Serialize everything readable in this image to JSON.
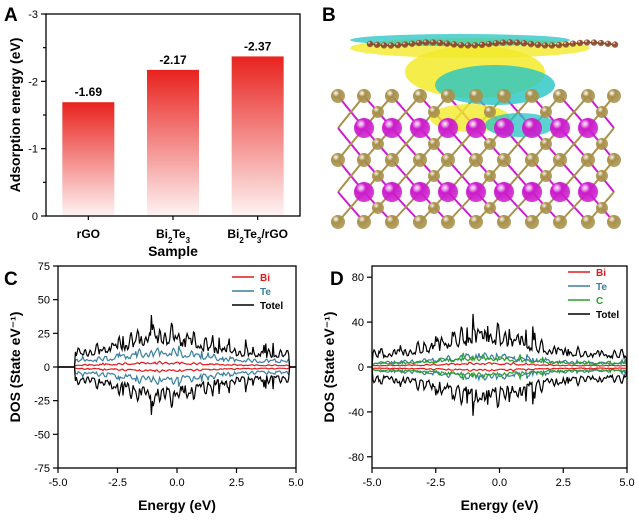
{
  "panel_labels": {
    "a": "A",
    "b": "B",
    "c": "C",
    "d": "D"
  },
  "chart_data": [
    {
      "panel": "A",
      "type": "bar",
      "categories": [
        "rGO",
        "Bi2Te3",
        "Bi2Te3/rGO"
      ],
      "category_parts": [
        [
          {
            "t": "rGO"
          }
        ],
        [
          {
            "t": "Bi"
          },
          {
            "t": "2",
            "sub": true
          },
          {
            "t": "Te"
          },
          {
            "t": "3",
            "sub": true
          }
        ],
        [
          {
            "t": "Bi"
          },
          {
            "t": "2",
            "sub": true
          },
          {
            "t": "Te"
          },
          {
            "t": "3",
            "sub": true
          },
          {
            "t": "/rGO"
          }
        ]
      ],
      "values": [
        -1.69,
        -2.17,
        -2.37
      ],
      "value_labels": [
        "-1.69",
        "-2.17",
        "-2.37"
      ],
      "xlabel": "Sample",
      "ylabel": "Adsorption energy (eV)",
      "ylim": [
        0,
        -3
      ],
      "yticks": [
        0,
        -1,
        -2,
        -3
      ],
      "ytick_labels": [
        "0",
        "-1",
        "-2",
        "-3"
      ],
      "bar_color": "#e8221e"
    },
    {
      "panel": "B",
      "type": "other",
      "description_colors": {
        "bi_atom": "#cc1ccc",
        "te_atom": "#a8914a",
        "c_atom": "#8b4a2a",
        "charge_gain": "#f2ea2a",
        "charge_loss": "#26c4c4"
      }
    },
    {
      "panel": "C",
      "type": "line",
      "xlabel": "Energy (eV)",
      "ylabel": "DOS (State eV⁻¹)",
      "xlim": [
        -5,
        5
      ],
      "ylim": [
        -75,
        75
      ],
      "xticks": [
        -5,
        -2.5,
        0,
        2.5,
        5
      ],
      "xtick_labels": [
        "-5.0",
        "-2.5",
        "0.0",
        "2.5",
        "5.0"
      ],
      "yticks": [
        -75,
        -50,
        -25,
        0,
        25,
        50,
        75
      ],
      "ytick_labels": [
        "-75",
        "-50",
        "-25",
        "0",
        "25",
        "50",
        "75"
      ],
      "series": [
        {
          "name": "Bi",
          "color": "#e31a1c",
          "amplitude": 4,
          "seed": 3,
          "spikiness": 0.4
        },
        {
          "name": "Te",
          "color": "#3a7fa0",
          "amplitude": 14,
          "seed": 7,
          "spikiness": 0.6
        },
        {
          "name": "Totel",
          "color": "#000000",
          "amplitude": 30,
          "seed": 11,
          "spikiness": 1.0
        }
      ],
      "band_edges": [
        -4.3,
        4.7
      ]
    },
    {
      "panel": "D",
      "type": "line",
      "xlabel": "Energy (eV)",
      "ylabel": "DOS (State eV⁻¹)",
      "xlim": [
        -5,
        5
      ],
      "ylim": [
        -90,
        90
      ],
      "xticks": [
        -5,
        -2.5,
        0,
        2.5,
        5
      ],
      "xtick_labels": [
        "-5.0",
        "-2.5",
        "0.0",
        "2.5",
        "5.0"
      ],
      "yticks": [
        -80,
        -40,
        0,
        40,
        80
      ],
      "ytick_labels": [
        "-80",
        "-40",
        "0",
        "40",
        "80"
      ],
      "series": [
        {
          "name": "Bi",
          "color": "#e31a1c",
          "amplitude": 4,
          "seed": 5,
          "spikiness": 0.4
        },
        {
          "name": "Te",
          "color": "#3a7fa0",
          "amplitude": 12,
          "seed": 9,
          "spikiness": 0.6
        },
        {
          "name": "C",
          "color": "#2ca02c",
          "amplitude": 10,
          "seed": 13,
          "spikiness": 0.7
        },
        {
          "name": "Totel",
          "color": "#000000",
          "amplitude": 36,
          "seed": 17,
          "spikiness": 1.0
        }
      ],
      "band_edges": [
        -5.0,
        5.0
      ]
    }
  ]
}
